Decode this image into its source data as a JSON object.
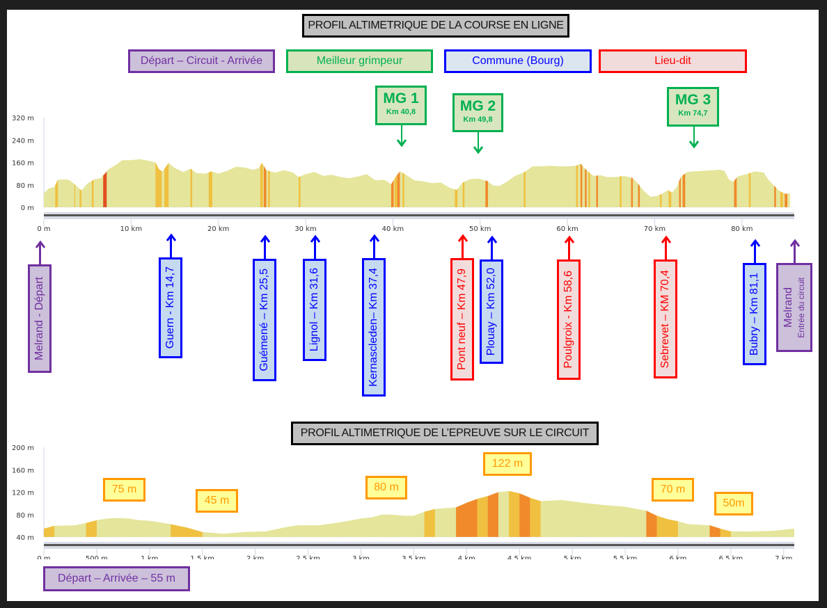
{
  "titles": {
    "main": "PROFIL ALTIMETRIQUE DE LA COURSE EN LIGNE",
    "circuit": "PROFIL ALTIMETRIQUE DE L’EPREUVE SUR LE CIRCUIT"
  },
  "legend": [
    {
      "label": "Départ – Circuit - Arrivée",
      "border": "#7030a0",
      "fill": "#ccc0da",
      "text": "#7030a0"
    },
    {
      "label": "Meilleur grimpeur",
      "border": "#00b050",
      "fill": "#d8e4bc",
      "text": "#00b050"
    },
    {
      "label": "Commune (Bourg)",
      "border": "#0000ff",
      "fill": "#dce6f1",
      "text": "#0000ff"
    },
    {
      "label": "Lieu-dit",
      "border": "#ff0000",
      "fill": "#f2dcdb",
      "text": "#ff0000"
    }
  ],
  "climbs": [
    {
      "title": "MG 1",
      "km_label": "Km 40,8",
      "km": 40.8
    },
    {
      "title": "MG 2",
      "km_label": "Km 49,8",
      "km": 49.8
    },
    {
      "title": "MG 3",
      "km_label": "Km 74,7",
      "km": 74.7
    }
  ],
  "places": [
    {
      "label": "Melrand - Départ",
      "km": 0,
      "type": "depart"
    },
    {
      "label": "Guern - Km 14,7",
      "km": 14.7,
      "type": "commune"
    },
    {
      "label": "Guémené – Km 25,5",
      "km": 25.5,
      "type": "commune"
    },
    {
      "label": "Lignol – Km 31,6",
      "km": 31.6,
      "type": "commune"
    },
    {
      "label": "Kernascleden– Km 37,4",
      "km": 37.4,
      "type": "commune"
    },
    {
      "label": "Pont neuf – Km 47,9",
      "km": 47.9,
      "type": "lieudit"
    },
    {
      "label": "Plouay – Km 52,0",
      "km": 52.0,
      "type": "commune"
    },
    {
      "label": "Poulgroix  - Km 58,6",
      "km": 58.6,
      "type": "lieudit"
    },
    {
      "label": "Sebrevet – KM 70,4",
      "km": 70.4,
      "type": "lieudit"
    },
    {
      "label": "Bubry – Km 81,1",
      "km": 81.1,
      "type": "commune"
    },
    {
      "label": "Melrand",
      "sublabel": "Entrée du circuit",
      "km": 85.5,
      "type": "depart"
    }
  ],
  "circuit_altitudes": [
    {
      "label": "75 m",
      "km": 0.75
    },
    {
      "label": "45 m",
      "km": 1.7
    },
    {
      "label": "80 m",
      "km": 3.2
    },
    {
      "label": "122 m",
      "km": 4.4
    },
    {
      "label": "70 m",
      "km": 5.9
    },
    {
      "label": "50m",
      "km": 6.5
    }
  ],
  "depart_arrivee": "Départ –  Arrivée – 55 m",
  "chart_data": [
    {
      "type": "area",
      "title": "PROFIL ALTIMETRIQUE DE LA COURSE EN LIGNE",
      "xlabel": "",
      "ylabel": "",
      "xlim": [
        0,
        86
      ],
      "ylim": [
        0,
        320
      ],
      "y_ticks": [
        "0 m",
        "80 m",
        "160 m",
        "240 m",
        "320 m"
      ],
      "y_tick_values": [
        0,
        80,
        160,
        240,
        320
      ],
      "x_ticks": [
        "0 m",
        "10 km",
        "20 km",
        "30 km",
        "40 km",
        "50 km",
        "60 km",
        "70 km",
        "80 km"
      ],
      "x_tick_values": [
        0,
        10,
        20,
        30,
        40,
        50,
        60,
        70,
        80
      ],
      "grid": false,
      "x": [
        0,
        0.6,
        1.2,
        1.6,
        2.5,
        3.0,
        3.6,
        4.3,
        5.0,
        5.8,
        6.5,
        7.0,
        7.4,
        8.2,
        9.0,
        10.0,
        11.0,
        12.0,
        12.8,
        13.2,
        13.6,
        14.3,
        15.0,
        16.0,
        16.8,
        17.5,
        18.5,
        19.2,
        20.0,
        21.0,
        22.0,
        23.0,
        24.0,
        24.6,
        25.0,
        25.5,
        26.5,
        27.5,
        28.5,
        29.2,
        30.0,
        31.0,
        32.0,
        33.0,
        34.0,
        35.0,
        36.0,
        37.0,
        38.0,
        39.0,
        39.8,
        40.3,
        40.8,
        41.5,
        42.5,
        43.5,
        44.5,
        45.5,
        46.5,
        47.3,
        48.0,
        48.8,
        49.8,
        50.8,
        51.5,
        52.2,
        53.0,
        54.0,
        55.0,
        56.0,
        57.0,
        58.0,
        59.0,
        60.0,
        61.0,
        61.5,
        62.0,
        62.5,
        63.0,
        63.8,
        64.5,
        65.5,
        66.5,
        67.5,
        68.0,
        68.7,
        69.5,
        70.2,
        71.0,
        71.5,
        72.0,
        72.5,
        73.0,
        73.7,
        74.5,
        75.5,
        76.5,
        77.5,
        78.0,
        78.5,
        79.0,
        79.5,
        80.5,
        81.5,
        82.5,
        83.0,
        83.6,
        84.3,
        85.0,
        85.5
      ],
      "values": [
        50,
        68,
        72,
        98,
        100,
        96,
        80,
        60,
        85,
        100,
        104,
        120,
        136,
        150,
        168,
        168,
        172,
        166,
        160,
        135,
        128,
        158,
        140,
        126,
        138,
        122,
        120,
        128,
        120,
        130,
        144,
        142,
        134,
        140,
        158,
        132,
        124,
        132,
        125,
        108,
        118,
        126,
        112,
        116,
        108,
        104,
        110,
        118,
        96,
        98,
        82,
        108,
        128,
        116,
        96,
        92,
        86,
        88,
        70,
        62,
        88,
        100,
        102,
        94,
        78,
        76,
        90,
        112,
        124,
        146,
        146,
        148,
        146,
        146,
        148,
        156,
        138,
        124,
        112,
        114,
        108,
        108,
        112,
        104,
        88,
        60,
        38,
        40,
        50,
        62,
        52,
        72,
        108,
        126,
        128,
        130,
        132,
        134,
        130,
        100,
        90,
        110,
        118,
        128,
        124,
        100,
        80,
        58,
        48,
        50
      ],
      "steep_segments": [
        {
          "from": 1.3,
          "to": 1.6,
          "level": "moderate"
        },
        {
          "from": 3.5,
          "to": 3.6,
          "level": "moderate"
        },
        {
          "from": 4.1,
          "to": 4.3,
          "level": "moderate"
        },
        {
          "from": 5.5,
          "to": 5.7,
          "level": "moderate"
        },
        {
          "from": 6.8,
          "to": 7.2,
          "level": "severe"
        },
        {
          "from": 12.8,
          "to": 13.5,
          "level": "moderate"
        },
        {
          "from": 13.8,
          "to": 14.3,
          "level": "moderate"
        },
        {
          "from": 16.8,
          "to": 17.0,
          "level": "moderate"
        },
        {
          "from": 18.9,
          "to": 19.3,
          "level": "moderate"
        },
        {
          "from": 24.8,
          "to": 25.1,
          "level": "moderate"
        },
        {
          "from": 25.2,
          "to": 25.5,
          "level": "steep"
        },
        {
          "from": 25.7,
          "to": 25.9,
          "level": "moderate"
        },
        {
          "from": 29.2,
          "to": 29.4,
          "level": "moderate"
        },
        {
          "from": 39.8,
          "to": 40.1,
          "level": "steep"
        },
        {
          "from": 40.2,
          "to": 40.5,
          "level": "moderate"
        },
        {
          "from": 40.5,
          "to": 40.8,
          "level": "steep"
        },
        {
          "from": 41.1,
          "to": 41.3,
          "level": "moderate"
        },
        {
          "from": 47.1,
          "to": 47.4,
          "level": "moderate"
        },
        {
          "from": 48.0,
          "to": 48.2,
          "level": "moderate"
        },
        {
          "from": 50.6,
          "to": 50.9,
          "level": "steep"
        },
        {
          "from": 55.0,
          "to": 55.2,
          "level": "moderate"
        },
        {
          "from": 61.0,
          "to": 61.2,
          "level": "moderate"
        },
        {
          "from": 61.5,
          "to": 61.7,
          "level": "steep"
        },
        {
          "from": 62.0,
          "to": 62.2,
          "level": "steep"
        },
        {
          "from": 62.4,
          "to": 62.6,
          "level": "moderate"
        },
        {
          "from": 63.3,
          "to": 63.5,
          "level": "steep"
        },
        {
          "from": 66.0,
          "to": 66.2,
          "level": "moderate"
        },
        {
          "from": 67.3,
          "to": 67.5,
          "level": "steep"
        },
        {
          "from": 68.1,
          "to": 68.3,
          "level": "steep"
        },
        {
          "from": 70.6,
          "to": 70.8,
          "level": "moderate"
        },
        {
          "from": 71.6,
          "to": 71.9,
          "level": "moderate"
        },
        {
          "from": 72.8,
          "to": 73.0,
          "level": "steep"
        },
        {
          "from": 73.2,
          "to": 73.5,
          "level": "steep"
        },
        {
          "from": 79.1,
          "to": 79.4,
          "level": "steep"
        },
        {
          "from": 80.8,
          "to": 81.0,
          "level": "moderate"
        },
        {
          "from": 83.7,
          "to": 83.9,
          "level": "steep"
        },
        {
          "from": 84.4,
          "to": 84.7,
          "level": "moderate"
        },
        {
          "from": 84.9,
          "to": 85.2,
          "level": "steep"
        }
      ]
    },
    {
      "type": "area",
      "title": "PROFIL ALTIMETRIQUE DE L’EPREUVE SUR LE CIRCUIT",
      "xlabel": "",
      "ylabel": "",
      "xlim": [
        0,
        7.1
      ],
      "ylim": [
        40,
        200
      ],
      "y_ticks": [
        "40 m",
        "80 m",
        "120 m",
        "160 m",
        "200 m"
      ],
      "y_tick_values": [
        40,
        80,
        120,
        160,
        200
      ],
      "x_ticks": [
        "0 m",
        "500 m",
        "1 km",
        "1.5 km",
        "2 km",
        "2.5 km",
        "3 km",
        "3.5 km",
        "4 km",
        "4.5 km",
        "5 km",
        "5.5 km",
        "6 km",
        "6.5 km",
        "7 km"
      ],
      "x_tick_values": [
        0,
        0.5,
        1,
        1.5,
        2,
        2.5,
        3,
        3.5,
        4,
        4.5,
        5,
        5.5,
        6,
        6.5,
        7
      ],
      "grid": false,
      "x": [
        0,
        0.1,
        0.3,
        0.4,
        0.5,
        0.6,
        0.7,
        0.8,
        0.9,
        1.0,
        1.1,
        1.2,
        1.35,
        1.5,
        1.7,
        1.9,
        2.1,
        2.3,
        2.4,
        2.6,
        2.8,
        3.0,
        3.1,
        3.2,
        3.3,
        3.4,
        3.5,
        3.6,
        3.7,
        3.9,
        4.0,
        4.1,
        4.2,
        4.3,
        4.4,
        4.5,
        4.6,
        4.7,
        4.9,
        5.1,
        5.3,
        5.5,
        5.7,
        5.8,
        5.9,
        6.0,
        6.1,
        6.3,
        6.4,
        6.5,
        6.7,
        6.9,
        7.1
      ],
      "values": [
        55,
        60,
        61,
        65,
        70,
        73,
        74,
        73,
        70,
        69,
        66,
        63,
        57,
        49,
        46,
        49,
        50,
        58,
        61,
        61,
        66,
        73,
        75,
        80,
        80,
        78,
        78,
        85,
        90,
        93,
        101,
        108,
        113,
        120,
        122,
        118,
        110,
        104,
        106,
        101,
        97,
        94,
        87,
        78,
        72,
        68,
        63,
        61,
        55,
        50,
        50,
        51,
        55
      ],
      "steep_segments": [
        {
          "from": 0.0,
          "to": 0.1,
          "level": "moderate"
        },
        {
          "from": 0.4,
          "to": 0.5,
          "level": "moderate"
        },
        {
          "from": 1.2,
          "to": 1.5,
          "level": "moderate"
        },
        {
          "from": 3.6,
          "to": 3.7,
          "level": "moderate"
        },
        {
          "from": 3.9,
          "to": 4.1,
          "level": "steep"
        },
        {
          "from": 4.1,
          "to": 4.2,
          "level": "moderate"
        },
        {
          "from": 4.2,
          "to": 4.3,
          "level": "steep"
        },
        {
          "from": 4.4,
          "to": 4.5,
          "level": "moderate"
        },
        {
          "from": 4.5,
          "to": 4.6,
          "level": "steep"
        },
        {
          "from": 4.6,
          "to": 4.7,
          "level": "moderate"
        },
        {
          "from": 5.7,
          "to": 5.8,
          "level": "steep"
        },
        {
          "from": 5.8,
          "to": 6.0,
          "level": "moderate"
        },
        {
          "from": 6.3,
          "to": 6.4,
          "level": "steep"
        },
        {
          "from": 6.4,
          "to": 6.5,
          "level": "moderate"
        }
      ]
    }
  ],
  "colors": {
    "profile_fill": "#e5e59b",
    "moderate": "#f0c040",
    "steep": "#f08a2a",
    "severe": "#e05020",
    "axis_text": "#333333"
  }
}
